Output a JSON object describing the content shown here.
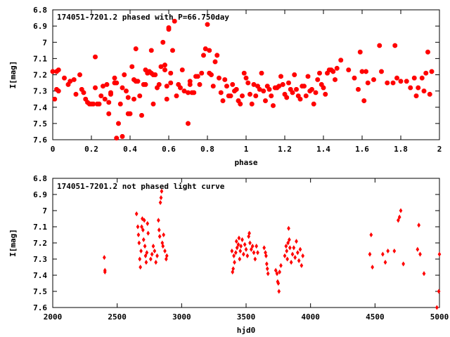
{
  "chart_data": [
    {
      "type": "scatter",
      "title": "174051-7201.2 phased with P=66.750day",
      "xlabel": "phase",
      "ylabel": "I[mag]",
      "xlim": [
        0,
        2
      ],
      "ylim": [
        6.8,
        7.6
      ],
      "y_inverted": true,
      "xticks": [
        0,
        0.2,
        0.4,
        0.6,
        0.8,
        1,
        1.2,
        1.4,
        1.6,
        1.8,
        2
      ],
      "yticks": [
        6.8,
        6.9,
        7,
        7.1,
        7.2,
        7.3,
        7.4,
        7.5,
        7.6
      ],
      "color": "#ff0000",
      "marker": "star",
      "points": [
        [
          0.0,
          7.18
        ],
        [
          0.01,
          7.35
        ],
        [
          0.02,
          7.29
        ],
        [
          0.02,
          7.18
        ],
        [
          0.03,
          7.3
        ],
        [
          0.03,
          7.17
        ],
        [
          0.06,
          7.22
        ],
        [
          0.08,
          7.26
        ],
        [
          0.09,
          7.24
        ],
        [
          0.11,
          7.23
        ],
        [
          0.12,
          7.32
        ],
        [
          0.14,
          7.2
        ],
        [
          0.15,
          7.29
        ],
        [
          0.16,
          7.31
        ],
        [
          0.17,
          7.35
        ],
        [
          0.18,
          7.37
        ],
        [
          0.19,
          7.38
        ],
        [
          0.2,
          7.38
        ],
        [
          0.21,
          7.38
        ],
        [
          0.22,
          7.28
        ],
        [
          0.22,
          7.09
        ],
        [
          0.23,
          7.38
        ],
        [
          0.24,
          7.38
        ],
        [
          0.25,
          7.33
        ],
        [
          0.26,
          7.27
        ],
        [
          0.27,
          7.35
        ],
        [
          0.28,
          7.26
        ],
        [
          0.29,
          7.37
        ],
        [
          0.29,
          7.44
        ],
        [
          0.3,
          7.32
        ],
        [
          0.3,
          7.31
        ],
        [
          0.32,
          7.22
        ],
        [
          0.32,
          7.25
        ],
        [
          0.33,
          7.25
        ],
        [
          0.33,
          7.59
        ],
        [
          0.34,
          7.5
        ],
        [
          0.35,
          7.38
        ],
        [
          0.36,
          7.58
        ],
        [
          0.36,
          7.28
        ],
        [
          0.37,
          7.2
        ],
        [
          0.38,
          7.3
        ],
        [
          0.39,
          7.34
        ],
        [
          0.39,
          7.44
        ],
        [
          0.4,
          7.44
        ],
        [
          0.41,
          7.15
        ],
        [
          0.42,
          7.23
        ],
        [
          0.42,
          7.35
        ],
        [
          0.43,
          7.04
        ],
        [
          0.43,
          7.24
        ],
        [
          0.44,
          7.24
        ],
        [
          0.45,
          7.33
        ],
        [
          0.46,
          7.45
        ],
        [
          0.47,
          7.26
        ],
        [
          0.48,
          7.17
        ],
        [
          0.48,
          7.26
        ],
        [
          0.49,
          7.19
        ],
        [
          0.5,
          7.18
        ],
        [
          0.51,
          7.19
        ],
        [
          0.51,
          7.05
        ],
        [
          0.52,
          7.2
        ],
        [
          0.52,
          7.38
        ],
        [
          0.53,
          7.2
        ],
        [
          0.54,
          7.28
        ],
        [
          0.55,
          7.26
        ],
        [
          0.56,
          7.15
        ],
        [
          0.57,
          7.0
        ],
        [
          0.58,
          7.17
        ],
        [
          0.58,
          7.14
        ],
        [
          0.59,
          7.35
        ],
        [
          0.59,
          7.27
        ],
        [
          0.6,
          6.92
        ],
        [
          0.6,
          6.91
        ],
        [
          0.61,
          7.25
        ],
        [
          0.61,
          7.19
        ],
        [
          0.62,
          7.05
        ],
        [
          0.63,
          6.87
        ],
        [
          0.64,
          7.33
        ],
        [
          0.65,
          7.26
        ],
        [
          0.66,
          7.28
        ],
        [
          0.67,
          7.17
        ],
        [
          0.68,
          7.3
        ],
        [
          0.7,
          7.31
        ],
        [
          0.7,
          7.5
        ],
        [
          0.71,
          7.26
        ],
        [
          0.71,
          7.24
        ],
        [
          0.72,
          7.31
        ],
        [
          0.73,
          7.31
        ],
        [
          0.74,
          7.21
        ],
        [
          0.75,
          7.21
        ],
        [
          0.76,
          7.26
        ],
        [
          0.77,
          7.19
        ],
        [
          0.78,
          7.08
        ],
        [
          0.79,
          7.04
        ],
        [
          0.8,
          6.89
        ],
        [
          0.81,
          7.05
        ],
        [
          0.81,
          7.19
        ],
        [
          0.82,
          7.2
        ],
        [
          0.83,
          7.27
        ],
        [
          0.84,
          7.12
        ],
        [
          0.85,
          7.08
        ],
        [
          0.86,
          7.22
        ],
        [
          0.87,
          7.31
        ],
        [
          0.88,
          7.36
        ],
        [
          0.89,
          7.23
        ],
        [
          0.9,
          7.27
        ],
        [
          0.91,
          7.33
        ],
        [
          0.92,
          7.33
        ],
        [
          0.93,
          7.26
        ],
        [
          0.94,
          7.3
        ],
        [
          0.95,
          7.29
        ],
        [
          0.96,
          7.36
        ],
        [
          0.97,
          7.38
        ],
        [
          0.98,
          7.33
        ],
        [
          0.99,
          7.19
        ],
        [
          1.0,
          7.22
        ],
        [
          1.01,
          7.25
        ],
        [
          1.02,
          7.32
        ],
        [
          1.03,
          7.38
        ],
        [
          1.04,
          7.26
        ],
        [
          1.05,
          7.33
        ],
        [
          1.06,
          7.27
        ],
        [
          1.07,
          7.29
        ],
        [
          1.08,
          7.19
        ],
        [
          1.09,
          7.3
        ],
        [
          1.1,
          7.36
        ],
        [
          1.11,
          7.27
        ],
        [
          1.12,
          7.29
        ],
        [
          1.13,
          7.33
        ],
        [
          1.14,
          7.39
        ],
        [
          1.15,
          7.28
        ],
        [
          1.16,
          7.28
        ],
        [
          1.17,
          7.27
        ],
        [
          1.18,
          7.21
        ],
        [
          1.19,
          7.26
        ],
        [
          1.2,
          7.32
        ],
        [
          1.21,
          7.34
        ],
        [
          1.22,
          7.25
        ],
        [
          1.23,
          7.29
        ],
        [
          1.24,
          7.31
        ],
        [
          1.25,
          7.2
        ],
        [
          1.26,
          7.29
        ],
        [
          1.27,
          7.33
        ],
        [
          1.28,
          7.35
        ],
        [
          1.29,
          7.27
        ],
        [
          1.3,
          7.27
        ],
        [
          1.31,
          7.33
        ],
        [
          1.32,
          7.21
        ],
        [
          1.33,
          7.3
        ],
        [
          1.34,
          7.29
        ],
        [
          1.35,
          7.38
        ],
        [
          1.36,
          7.31
        ],
        [
          1.37,
          7.23
        ],
        [
          1.38,
          7.19
        ],
        [
          1.39,
          7.26
        ],
        [
          1.4,
          7.28
        ],
        [
          1.41,
          7.32
        ],
        [
          1.42,
          7.19
        ],
        [
          1.43,
          7.17
        ],
        [
          1.44,
          7.17
        ],
        [
          1.45,
          7.18
        ],
        [
          1.46,
          7.23
        ],
        [
          1.47,
          7.16
        ],
        [
          1.49,
          7.11
        ],
        [
          1.53,
          7.17
        ],
        [
          1.56,
          7.22
        ],
        [
          1.58,
          7.29
        ],
        [
          1.59,
          7.06
        ],
        [
          1.6,
          7.18
        ],
        [
          1.61,
          7.36
        ],
        [
          1.62,
          7.18
        ],
        [
          1.63,
          7.25
        ],
        [
          1.66,
          7.23
        ],
        [
          1.69,
          7.02
        ],
        [
          1.7,
          7.18
        ],
        [
          1.73,
          7.25
        ],
        [
          1.76,
          7.25
        ],
        [
          1.77,
          7.02
        ],
        [
          1.78,
          7.22
        ],
        [
          1.8,
          7.24
        ],
        [
          1.83,
          7.24
        ],
        [
          1.85,
          7.28
        ],
        [
          1.87,
          7.22
        ],
        [
          1.88,
          7.33
        ],
        [
          1.89,
          7.28
        ],
        [
          1.91,
          7.22
        ],
        [
          1.92,
          7.3
        ],
        [
          1.93,
          7.19
        ],
        [
          1.94,
          7.06
        ],
        [
          1.95,
          7.32
        ],
        [
          1.96,
          7.18
        ]
      ]
    },
    {
      "type": "scatter",
      "title": "174051-7201.2 not phased light curve",
      "xlabel": "hjd0",
      "ylabel": "I[mag]",
      "xlim": [
        2000,
        5000
      ],
      "ylim": [
        6.8,
        7.6
      ],
      "y_inverted": true,
      "xticks": [
        2000,
        2500,
        3000,
        3500,
        4000,
        4500,
        5000
      ],
      "yticks": [
        6.8,
        6.9,
        7,
        7.1,
        7.2,
        7.3,
        7.4,
        7.5,
        7.6
      ],
      "color": "#ff0000",
      "marker": "diamond",
      "points": [
        [
          2400,
          7.29
        ],
        [
          2405,
          7.37
        ],
        [
          2405,
          7.38
        ],
        [
          2650,
          7.02
        ],
        [
          2660,
          7.1
        ],
        [
          2665,
          7.15
        ],
        [
          2670,
          7.2
        ],
        [
          2675,
          7.3
        ],
        [
          2680,
          7.35
        ],
        [
          2685,
          7.25
        ],
        [
          2690,
          7.1
        ],
        [
          2695,
          7.05
        ],
        [
          2700,
          7.12
        ],
        [
          2705,
          7.18
        ],
        [
          2710,
          7.06
        ],
        [
          2715,
          7.22
        ],
        [
          2720,
          7.28
        ],
        [
          2725,
          7.32
        ],
        [
          2730,
          7.26
        ],
        [
          2735,
          7.08
        ],
        [
          2740,
          7.14
        ],
        [
          2760,
          7.3
        ],
        [
          2770,
          7.27
        ],
        [
          2780,
          7.22
        ],
        [
          2790,
          7.25
        ],
        [
          2800,
          7.32
        ],
        [
          2810,
          7.28
        ],
        [
          2820,
          7.06
        ],
        [
          2825,
          7.12
        ],
        [
          2830,
          7.16
        ],
        [
          2835,
          6.95
        ],
        [
          2840,
          6.92
        ],
        [
          2845,
          6.88
        ],
        [
          2850,
          7.2
        ],
        [
          2855,
          7.22
        ],
        [
          2860,
          7.15
        ],
        [
          2870,
          7.25
        ],
        [
          2880,
          7.3
        ],
        [
          2885,
          7.28
        ],
        [
          3390,
          7.25
        ],
        [
          3395,
          7.38
        ],
        [
          3400,
          7.36
        ],
        [
          3405,
          7.28
        ],
        [
          3410,
          7.32
        ],
        [
          3420,
          7.26
        ],
        [
          3425,
          7.19
        ],
        [
          3430,
          7.23
        ],
        [
          3440,
          7.21
        ],
        [
          3445,
          7.17
        ],
        [
          3450,
          7.3
        ],
        [
          3455,
          7.25
        ],
        [
          3460,
          7.22
        ],
        [
          3470,
          7.18
        ],
        [
          3480,
          7.27
        ],
        [
          3490,
          7.21
        ],
        [
          3500,
          7.24
        ],
        [
          3510,
          7.28
        ],
        [
          3520,
          7.16
        ],
        [
          3525,
          7.14
        ],
        [
          3530,
          7.2
        ],
        [
          3540,
          7.24
        ],
        [
          3550,
          7.22
        ],
        [
          3560,
          7.26
        ],
        [
          3570,
          7.3
        ],
        [
          3580,
          7.22
        ],
        [
          3590,
          7.26
        ],
        [
          3640,
          7.23
        ],
        [
          3650,
          7.26
        ],
        [
          3655,
          7.28
        ],
        [
          3660,
          7.33
        ],
        [
          3665,
          7.36
        ],
        [
          3670,
          7.39
        ],
        [
          3730,
          7.37
        ],
        [
          3740,
          7.39
        ],
        [
          3745,
          7.44
        ],
        [
          3750,
          7.45
        ],
        [
          3755,
          7.5
        ],
        [
          3760,
          7.38
        ],
        [
          3770,
          7.34
        ],
        [
          3800,
          7.28
        ],
        [
          3810,
          7.22
        ],
        [
          3815,
          7.25
        ],
        [
          3820,
          7.3
        ],
        [
          3825,
          7.2
        ],
        [
          3830,
          7.11
        ],
        [
          3835,
          7.18
        ],
        [
          3840,
          7.23
        ],
        [
          3850,
          7.32
        ],
        [
          3860,
          7.27
        ],
        [
          3870,
          7.23
        ],
        [
          3880,
          7.29
        ],
        [
          3890,
          7.19
        ],
        [
          3900,
          7.26
        ],
        [
          3910,
          7.31
        ],
        [
          3920,
          7.24
        ],
        [
          3930,
          7.34
        ],
        [
          3940,
          7.28
        ],
        [
          4460,
          7.27
        ],
        [
          4470,
          7.15
        ],
        [
          4480,
          7.35
        ],
        [
          4560,
          7.27
        ],
        [
          4580,
          7.32
        ],
        [
          4600,
          7.25
        ],
        [
          4650,
          7.25
        ],
        [
          4680,
          7.06
        ],
        [
          4690,
          7.04
        ],
        [
          4700,
          7.0
        ],
        [
          4720,
          7.33
        ],
        [
          4830,
          7.24
        ],
        [
          4840,
          7.09
        ],
        [
          4850,
          7.27
        ],
        [
          4880,
          7.39
        ],
        [
          4980,
          7.6
        ],
        [
          4995,
          7.5
        ],
        [
          5000,
          7.27
        ]
      ]
    }
  ]
}
